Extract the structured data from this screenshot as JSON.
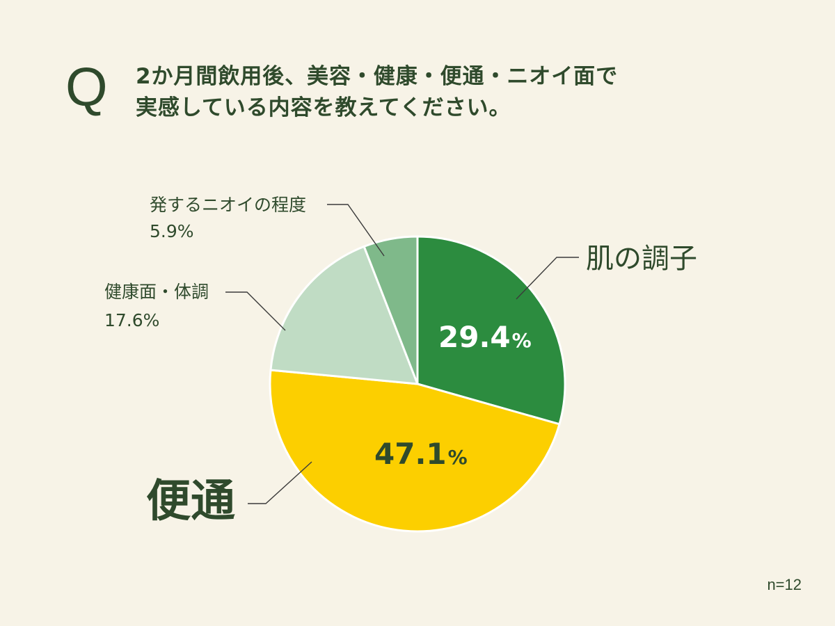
{
  "question": {
    "mark": "Q",
    "line1": "2か月間飲用後、美容・健康・便通・ニオイ面で",
    "line2": "実感している内容を教えてください。"
  },
  "chart_data": {
    "type": "pie",
    "categories": [
      "肌の調子",
      "便通",
      "健康面・体調",
      "発するニオイの程度"
    ],
    "values": [
      29.4,
      47.1,
      17.6,
      5.9
    ],
    "value_labels": [
      "29.4",
      "47.1",
      "17.6%",
      "5.9%"
    ],
    "unit": "%",
    "colors": [
      "#2c8c3f",
      "#fccf00",
      "#c0dcc4",
      "#7fb98a"
    ],
    "start_angle": "12 o'clock, clockwise",
    "legend": "none (leader-line labels)"
  },
  "sample_size": "n=12"
}
